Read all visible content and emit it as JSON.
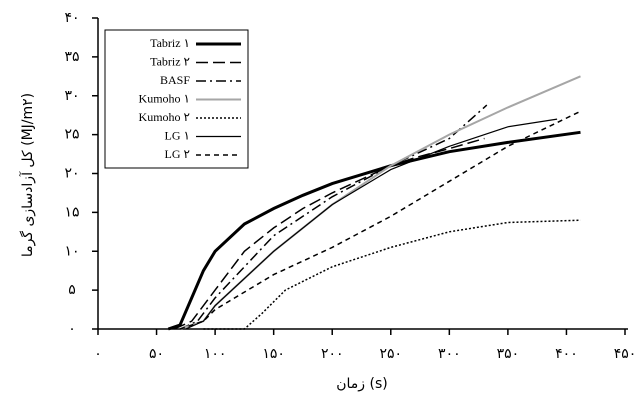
{
  "chart_data": {
    "type": "line",
    "xlabel": "زمان (s)",
    "ylabel": "کل آزادسازی گرما (MJ/m۲)",
    "xlim": [
      0,
      450
    ],
    "ylim": [
      0,
      40
    ],
    "xticks": [
      {
        "value": 0,
        "label": "۰"
      },
      {
        "value": 50,
        "label": "۵۰"
      },
      {
        "value": 100,
        "label": "۱۰۰"
      },
      {
        "value": 150,
        "label": "۱۵۰"
      },
      {
        "value": 200,
        "label": "۲۰۰"
      },
      {
        "value": 250,
        "label": "۲۵۰"
      },
      {
        "value": 300,
        "label": "۳۰۰"
      },
      {
        "value": 350,
        "label": "۳۵۰"
      },
      {
        "value": 400,
        "label": "۴۰۰"
      },
      {
        "value": 450,
        "label": "۴۵۰"
      }
    ],
    "yticks": [
      {
        "value": 0,
        "label": "۰"
      },
      {
        "value": 5,
        "label": "۵"
      },
      {
        "value": 10,
        "label": "۱۰"
      },
      {
        "value": 15,
        "label": "۱۵"
      },
      {
        "value": 20,
        "label": "۲۰"
      },
      {
        "value": 25,
        "label": "۲۵"
      },
      {
        "value": 30,
        "label": "۳۰"
      },
      {
        "value": 35,
        "label": "۳۵"
      },
      {
        "value": 40,
        "label": "۴۰"
      }
    ],
    "legend": "upper left",
    "series": [
      {
        "name": "Tabriz ۱",
        "color": "#000000",
        "linestyle": "solid",
        "linewidth": 3,
        "x": [
          60,
          70,
          80,
          90,
          100,
          125,
          150,
          175,
          200,
          250,
          300,
          350,
          412
        ],
        "values": [
          0,
          0.5,
          4,
          7.5,
          10,
          13.5,
          15.5,
          17.2,
          18.7,
          21,
          22.8,
          24,
          25.3
        ]
      },
      {
        "name": "Tabriz ۲",
        "color": "#000000",
        "linestyle": "dashed",
        "linewidth": 1.5,
        "x": [
          65,
          80,
          100,
          125,
          150,
          175,
          200,
          250,
          270,
          300,
          330
        ],
        "values": [
          0,
          1,
          5,
          10,
          13,
          15.5,
          17.5,
          21,
          22,
          23.2,
          24.5
        ]
      },
      {
        "name": "BASF",
        "color": "#000000",
        "linestyle": "dashdot",
        "linewidth": 1.5,
        "x": [
          70,
          85,
          100,
          125,
          150,
          200,
          250,
          300,
          332
        ],
        "values": [
          0,
          1,
          4,
          8,
          12,
          17,
          21,
          24.5,
          28.8
        ]
      },
      {
        "name": "Kumoho ۱",
        "color": "#a6a6a6",
        "linestyle": "solid",
        "linewidth": 2,
        "x": [
          70,
          90,
          100,
          150,
          200,
          250,
          300,
          350,
          412
        ],
        "values": [
          0,
          1,
          3,
          10,
          16,
          21,
          25,
          28.5,
          32.5
        ]
      },
      {
        "name": "Kumoho ۲",
        "color": "#000000",
        "linestyle": "dotted",
        "linewidth": 1.5,
        "x": [
          90,
          125,
          140,
          160,
          200,
          250,
          300,
          350,
          412
        ],
        "values": [
          0,
          0,
          2,
          5,
          8,
          10.5,
          12.5,
          13.7,
          14
        ]
      },
      {
        "name": "LG ۱",
        "color": "#000000",
        "linestyle": "solid",
        "linewidth": 1.2,
        "x": [
          75,
          90,
          100,
          150,
          200,
          250,
          300,
          350,
          392
        ],
        "values": [
          0,
          1,
          3,
          10,
          16,
          20.5,
          23.5,
          26,
          27
        ]
      },
      {
        "name": "LG ۲",
        "color": "#000000",
        "linestyle": "shortdash",
        "linewidth": 1.5,
        "x": [
          70,
          90,
          100,
          150,
          200,
          250,
          300,
          350,
          412
        ],
        "values": [
          0,
          1,
          2.5,
          7,
          10.5,
          14.5,
          19,
          23.5,
          28
        ]
      }
    ]
  }
}
